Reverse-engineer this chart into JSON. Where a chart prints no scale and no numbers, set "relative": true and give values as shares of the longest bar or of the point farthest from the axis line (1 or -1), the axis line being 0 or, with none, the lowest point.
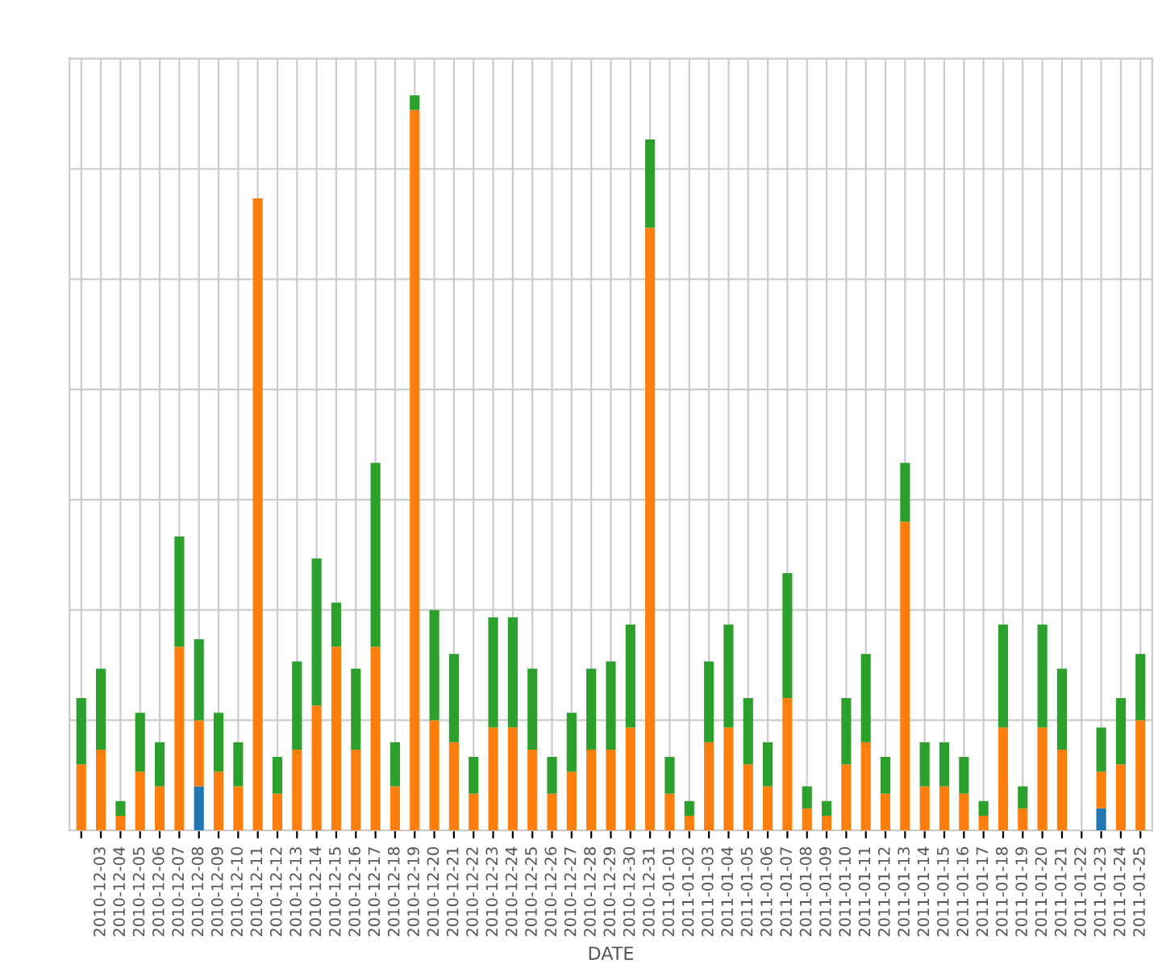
{
  "chart_data": {
    "type": "bar",
    "stacked": true,
    "relative": true,
    "grid": true,
    "xlabel": "DATE",
    "categories": [
      null,
      "2010-12-03",
      "2010-12-04",
      "2010-12-05",
      "2010-12-06",
      "2010-12-07",
      "2010-12-08",
      "2010-12-09",
      "2010-12-10",
      "2010-12-11",
      "2010-12-12",
      "2010-12-13",
      "2010-12-14",
      "2010-12-15",
      "2010-12-16",
      "2010-12-17",
      "2010-12-18",
      "2010-12-19",
      "2010-12-20",
      "2010-12-21",
      "2010-12-22",
      "2010-12-23",
      "2010-12-24",
      "2010-12-25",
      "2010-12-26",
      "2010-12-27",
      "2010-12-28",
      "2010-12-29",
      "2010-12-30",
      "2010-12-31",
      "2011-01-01",
      "2011-01-02",
      "2011-01-03",
      "2011-01-04",
      "2011-01-05",
      "2011-01-06",
      "2011-01-07",
      "2011-01-08",
      "2011-01-09",
      "2011-01-10",
      "2011-01-11",
      "2011-01-12",
      "2011-01-13",
      "2011-01-14",
      "2011-01-15",
      "2011-01-16",
      "2011-01-17",
      "2011-01-18",
      "2011-01-19",
      "2011-01-20",
      "2011-01-21",
      "2011-01-22",
      "2011-01-23",
      "2011-01-24",
      "2011-01-25"
    ],
    "series": [
      {
        "color": "#1f77b4",
        "values": [
          0,
          0,
          0,
          0,
          0,
          0,
          0.06,
          0,
          0,
          0,
          0,
          0,
          0,
          0,
          0,
          0,
          0,
          0,
          0,
          0,
          0,
          0,
          0,
          0,
          0,
          0,
          0,
          0,
          0,
          0,
          0,
          0,
          0,
          0,
          0,
          0,
          0,
          0,
          0,
          0,
          0,
          0,
          0,
          0,
          0,
          0,
          0,
          0,
          0,
          0,
          0,
          0,
          0.03,
          0,
          0
        ]
      },
      {
        "color": "#ff7f0e",
        "values": [
          0.09,
          0.11,
          0.02,
          0.08,
          0.06,
          0.25,
          0.09,
          0.08,
          0.06,
          0.86,
          0.05,
          0.11,
          0.17,
          0.25,
          0.11,
          0.25,
          0.06,
          0.98,
          0.15,
          0.12,
          0.05,
          0.14,
          0.14,
          0.11,
          0.05,
          0.08,
          0.11,
          0.11,
          0.14,
          0.82,
          0.05,
          0.02,
          0.12,
          0.14,
          0.09,
          0.06,
          0.18,
          0.03,
          0.02,
          0.09,
          0.12,
          0.05,
          0.42,
          0.06,
          0.06,
          0.05,
          0.02,
          0.14,
          0.03,
          0.14,
          0.11,
          0,
          0.05,
          0.09,
          0.15
        ]
      },
      {
        "color": "#2ca02c",
        "values": [
          0.09,
          0.11,
          0.02,
          0.08,
          0.06,
          0.15,
          0.11,
          0.08,
          0.06,
          null,
          0.05,
          0.12,
          0.2,
          0.06,
          0.11,
          0.25,
          0.06,
          0.02,
          0.15,
          0.12,
          0.05,
          0.15,
          0.15,
          0.11,
          0.05,
          0.08,
          0.11,
          0.12,
          0.14,
          0.12,
          0.05,
          0.02,
          0.11,
          0.14,
          0.09,
          0.06,
          0.17,
          0.03,
          0.02,
          0.09,
          0.12,
          0.05,
          0.08,
          0.06,
          0.06,
          0.05,
          0.02,
          0.14,
          0.03,
          0.14,
          0.11,
          0,
          0.06,
          0.09,
          0.09
        ]
      }
    ]
  }
}
